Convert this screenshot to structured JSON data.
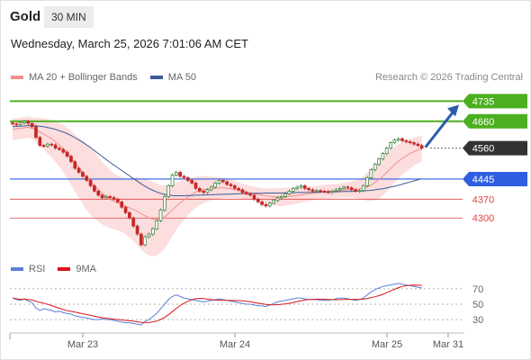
{
  "header": {
    "title": "Gold",
    "timeframe": "30 MIN"
  },
  "date_line": "Wednesday, March 25, 2026 7:01:06 AM CET",
  "credit": "Research © 2026 Trading Central",
  "legend_main": [
    {
      "label": "MA 20 + Bollinger Bands",
      "color": "#f28e8e"
    },
    {
      "label": "MA 50",
      "color": "#3d5a99"
    }
  ],
  "legend_rsi": [
    {
      "label": "RSI",
      "color": "#5b7fd6"
    },
    {
      "label": "9MA",
      "color": "#d9141b"
    }
  ],
  "colors": {
    "up": "#2e7d32",
    "down": "#c62828",
    "resistance": "#4caf1f",
    "support_blue": "#2f5fe0",
    "support_red": "#e04646",
    "current": "#333333",
    "band": "#fbd3d3",
    "arrow": "#2a5caa"
  },
  "chart_data": {
    "type": "candlestick",
    "x_ticks": [
      "Mar 23",
      "Mar 24",
      "Mar 25",
      "Mar 31"
    ],
    "y_range": [
      4160,
      4790
    ],
    "levels": [
      {
        "value": 4735,
        "label": "4735",
        "kind": "resistance"
      },
      {
        "value": 4660,
        "label": "4660",
        "kind": "resistance"
      },
      {
        "value": 4560,
        "label": "4560",
        "kind": "current"
      },
      {
        "value": 4445,
        "label": "4445",
        "kind": "support_major"
      },
      {
        "value": 4370,
        "label": "4370",
        "kind": "support"
      },
      {
        "value": 4300,
        "label": "4300",
        "kind": "support"
      }
    ],
    "price_close": [
      4650,
      4648,
      4655,
      4660,
      4652,
      4640,
      4600,
      4570,
      4568,
      4575,
      4572,
      4560,
      4555,
      4545,
      4530,
      4510,
      4485,
      4470,
      4455,
      4440,
      4420,
      4400,
      4385,
      4375,
      4380,
      4376,
      4370,
      4360,
      4340,
      4320,
      4300,
      4270,
      4240,
      4200,
      4230,
      4240,
      4260,
      4290,
      4330,
      4380,
      4420,
      4460,
      4470,
      4455,
      4450,
      4440,
      4430,
      4410,
      4400,
      4395,
      4405,
      4415,
      4430,
      4440,
      4435,
      4425,
      4420,
      4410,
      4405,
      4395,
      4390,
      4385,
      4370,
      4360,
      4350,
      4345,
      4355,
      4365,
      4375,
      4380,
      4390,
      4400,
      4410,
      4415,
      4420,
      4410,
      4405,
      4400,
      4402,
      4400,
      4398,
      4395,
      4400,
      4405,
      4410,
      4415,
      4412,
      4405,
      4400,
      4402,
      4420,
      4450,
      4480,
      4500,
      4520,
      4540,
      4560,
      4580,
      4590,
      4595,
      4588,
      4584,
      4580,
      4575,
      4570,
      4560
    ],
    "ma20": [
      4630,
      4632,
      4634,
      4636,
      4638,
      4634,
      4628,
      4620,
      4612,
      4604,
      4595,
      4584,
      4572,
      4558,
      4542,
      4524,
      4505,
      4488,
      4470,
      4452,
      4436,
      4421,
      4406,
      4392,
      4380,
      4370,
      4362,
      4356,
      4350,
      4344,
      4338,
      4332,
      4325,
      4316,
      4308,
      4300,
      4296,
      4294,
      4296,
      4303,
      4316,
      4330,
      4344,
      4356,
      4367,
      4378,
      4388,
      4396,
      4402,
      4406,
      4408,
      4410,
      4411,
      4412,
      4412,
      4411,
      4409,
      4406,
      4403,
      4400,
      4397,
      4394,
      4391,
      4388,
      4385,
      4382,
      4380,
      4379,
      4378,
      4378,
      4379,
      4380,
      4382,
      4384,
      4386,
      4388,
      4390,
      4392,
      4394,
      4396,
      4398,
      4399,
      4400,
      4401,
      4402,
      4404,
      4405,
      4406,
      4407,
      4408,
      4411,
      4416,
      4423,
      4432,
      4443,
      4456,
      4470,
      4484,
      4498,
      4511,
      4522,
      4531,
      4540,
      4547,
      4553,
      4558
    ],
    "ma50": [
      4640,
      4641,
      4642,
      4643,
      4644,
      4644,
      4643,
      4642,
      4640,
      4637,
      4634,
      4630,
      4625,
      4620,
      4614,
      4607,
      4599,
      4591,
      4582,
      4572,
      4562,
      4551,
      4540,
      4529,
      4518,
      4507,
      4497,
      4487,
      4477,
      4467,
      4457,
      4447,
      4437,
      4427,
      4418,
      4410,
      4403,
      4397,
      4392,
      4388,
      4386,
      4384,
      4383,
      4383,
      4383,
      4384,
      4384,
      4385,
      4385,
      4386,
      4386,
      4387,
      4387,
      4388,
      4388,
      4389,
      4389,
      4390,
      4390,
      4391,
      4391,
      4391,
      4392,
      4392,
      4392,
      4393,
      4393,
      4393,
      4393,
      4393,
      4394,
      4394,
      4394,
      4395,
      4395,
      4395,
      4395,
      4396,
      4396,
      4396,
      4397,
      4397,
      4397,
      4398,
      4398,
      4399,
      4399,
      4399,
      4400,
      4400,
      4401,
      4402,
      4403,
      4405,
      4407,
      4409,
      4412,
      4415,
      4418,
      4422,
      4426,
      4430,
      4434,
      4438,
      4442,
      4446
    ],
    "bb_width": [
      40,
      40,
      40,
      40,
      40,
      40,
      45,
      52,
      58,
      64,
      70,
      76,
      82,
      88,
      94,
      100,
      106,
      112,
      118,
      122,
      124,
      124,
      120,
      116,
      112,
      108,
      104,
      102,
      102,
      104,
      110,
      118,
      126,
      134,
      138,
      140,
      138,
      134,
      126,
      118,
      108,
      98,
      88,
      80,
      74,
      68,
      62,
      58,
      54,
      50,
      47,
      44,
      42,
      40,
      38,
      36,
      34,
      32,
      30,
      28,
      27,
      26,
      26,
      26,
      27,
      28,
      30,
      32,
      34,
      34,
      33,
      32,
      31,
      30,
      29,
      28,
      27,
      27,
      26,
      26,
      26,
      26,
      26,
      26,
      26,
      27,
      28,
      30,
      33,
      37,
      44,
      52,
      60,
      66,
      70,
      72,
      72,
      70,
      67,
      64,
      61,
      58,
      55,
      52,
      50,
      48
    ],
    "rsi": [
      58,
      56,
      55,
      57,
      54,
      52,
      45,
      42,
      44,
      43,
      42,
      40,
      41,
      39,
      38,
      37,
      35,
      34,
      33,
      32,
      31,
      30,
      30,
      31,
      30,
      30,
      29,
      28,
      27,
      26,
      26,
      25,
      24,
      23,
      28,
      30,
      34,
      38,
      44,
      50,
      56,
      60,
      62,
      60,
      58,
      57,
      56,
      55,
      54,
      53,
      54,
      55,
      56,
      57,
      56,
      55,
      54,
      53,
      52,
      51,
      50,
      50,
      49,
      48,
      48,
      47,
      49,
      51,
      53,
      54,
      55,
      56,
      57,
      58,
      58,
      57,
      56,
      56,
      56,
      55,
      55,
      55,
      56,
      57,
      58,
      58,
      57,
      56,
      55,
      56,
      58,
      62,
      66,
      69,
      71,
      73,
      74,
      75,
      76,
      77,
      76,
      75,
      74,
      73,
      72,
      71
    ],
    "rsi_ticks": [
      "70",
      "50",
      "30"
    ],
    "rsi_range": [
      15,
      85
    ]
  }
}
